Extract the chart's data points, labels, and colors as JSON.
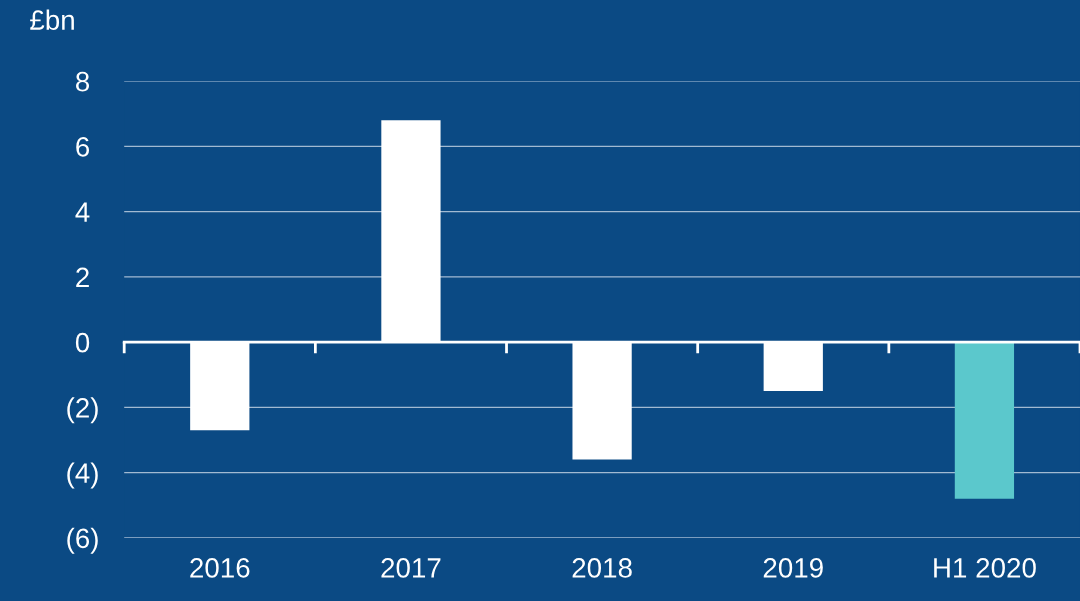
{
  "chart_data": {
    "type": "bar",
    "ylabel": "£bn",
    "categories": [
      "2016",
      "2017",
      "2018",
      "2019",
      "H1 2020"
    ],
    "values": [
      -2.7,
      6.8,
      -3.6,
      -1.5,
      -4.8
    ],
    "colors": [
      "#ffffff",
      "#ffffff",
      "#ffffff",
      "#ffffff",
      "#5bc8cc"
    ],
    "ylim": [
      -6,
      8
    ],
    "yticks": [
      {
        "value": -6,
        "label": "(6)"
      },
      {
        "value": -4,
        "label": "(4)"
      },
      {
        "value": -2,
        "label": "(2)"
      },
      0,
      2,
      4,
      6,
      8
    ],
    "grid": "y"
  }
}
